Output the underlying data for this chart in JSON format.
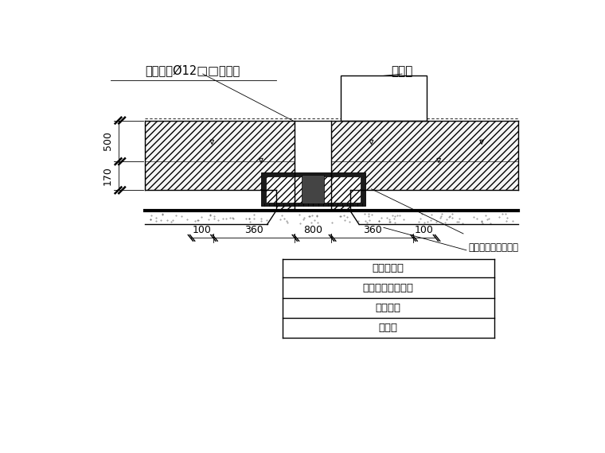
{
  "bg_color": "#ffffff",
  "line_color": "#000000",
  "label_top_left": "附加双向Ø12□□型盖筋",
  "label_top_right": "铅丝网",
  "dim_500": "500",
  "dim_170": "170",
  "note_right": "先浇与底板同标号砼",
  "layer1": "混凝土底板",
  "layer2": "外贴式橡胶止水带",
  "layer3": "防水卷材",
  "layer4": "砼垫层",
  "dims": [
    "100",
    "360",
    "800",
    "360",
    "100"
  ]
}
